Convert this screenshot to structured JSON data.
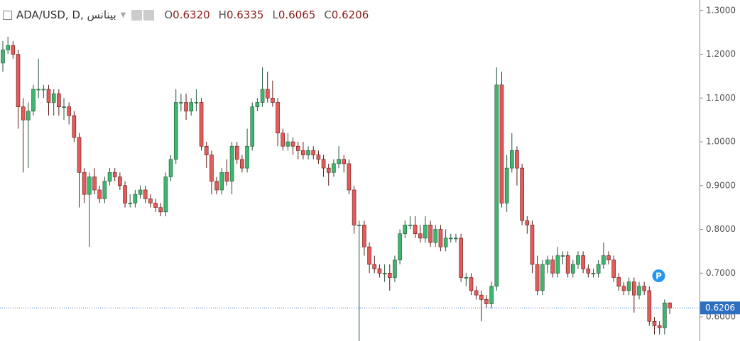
{
  "chart_data": {
    "type": "candlestick",
    "title": "ADA/USD, D, بينانس",
    "ohlc_labels": [
      {
        "key": "O",
        "text": "0.6320"
      },
      {
        "key": "H",
        "text": "0.6335"
      },
      {
        "key": "L",
        "text": "0.6065"
      },
      {
        "key": "C",
        "text": "0.6206"
      }
    ],
    "marker": "P",
    "up_color": "#3fb56f",
    "down_color": "#e35b5b",
    "up_border": "#225437",
    "down_border": "#5b1a13",
    "last_price_color": "#2f6fc0",
    "ylim": [
      0.545,
      1.324
    ],
    "yticks": [
      {
        "value": 0.6,
        "label": "0.6000"
      },
      {
        "value": 0.7,
        "label": "0.7000"
      },
      {
        "value": 0.8,
        "label": "0.8000"
      },
      {
        "value": 0.9,
        "label": "0.9000"
      },
      {
        "value": 1.0,
        "label": "1.0000"
      },
      {
        "value": 1.1,
        "label": "1.1000"
      },
      {
        "value": 1.2,
        "label": "1.2000"
      },
      {
        "value": 1.3,
        "label": "1.3000"
      }
    ],
    "open": [
      1.18,
      1.21,
      1.22,
      1.2,
      1.08,
      1.05,
      1.07,
      1.12,
      1.12,
      1.12,
      1.09,
      1.11,
      1.08,
      1.08,
      1.06,
      1.01,
      0.93,
      0.88,
      0.92,
      0.89,
      0.87,
      0.91,
      0.93,
      0.92,
      0.9,
      0.86,
      0.86,
      0.88,
      0.89,
      0.87,
      0.86,
      0.85,
      0.84,
      0.92,
      0.96,
      1.09,
      1.09,
      1.07,
      1.09,
      1.09,
      0.99,
      0.97,
      0.91,
      0.89,
      0.93,
      0.91,
      0.99,
      0.96,
      0.94,
      0.99,
      1.08,
      1.09,
      1.12,
      1.1,
      1.09,
      1.02,
      0.99,
      1.0,
      0.99,
      0.98,
      0.97,
      0.98,
      0.97,
      0.96,
      0.94,
      0.93,
      0.95,
      0.96,
      0.95,
      0.89,
      0.81,
      0.81,
      0.76,
      0.72,
      0.71,
      0.7,
      0.7,
      0.69,
      0.73,
      0.79,
      0.81,
      0.81,
      0.79,
      0.78,
      0.81,
      0.77,
      0.8,
      0.76,
      0.78,
      0.78,
      0.78,
      0.69,
      0.69,
      0.66,
      0.65,
      0.64,
      0.63,
      0.67,
      1.13,
      0.86,
      0.94,
      0.98,
      0.94,
      0.82,
      0.81,
      0.72,
      0.66,
      0.72,
      0.73,
      0.7,
      0.74,
      0.74,
      0.7,
      0.72,
      0.74,
      0.71,
      0.7,
      0.7,
      0.72,
      0.74,
      0.73,
      0.69,
      0.67,
      0.66,
      0.68,
      0.65,
      0.67,
      0.66,
      0.59,
      0.58,
      0.575,
      0.632
    ],
    "high": [
      1.23,
      1.24,
      1.23,
      1.21,
      1.1,
      1.09,
      1.13,
      1.19,
      1.13,
      1.13,
      1.12,
      1.12,
      1.1,
      1.09,
      1.07,
      1.02,
      0.94,
      0.93,
      0.94,
      0.9,
      0.92,
      0.94,
      0.94,
      0.93,
      0.91,
      0.88,
      0.89,
      0.9,
      0.9,
      0.88,
      0.87,
      0.86,
      0.93,
      0.97,
      1.12,
      1.11,
      1.11,
      1.1,
      1.12,
      1.1,
      1.0,
      0.98,
      0.92,
      0.94,
      0.96,
      1.0,
      1.0,
      0.97,
      1.03,
      1.09,
      1.1,
      1.17,
      1.16,
      1.14,
      1.1,
      1.03,
      1.02,
      1.01,
      1.0,
      1.0,
      0.99,
      0.99,
      0.98,
      0.97,
      0.95,
      0.96,
      0.99,
      0.97,
      0.96,
      0.9,
      0.82,
      0.82,
      0.77,
      0.74,
      0.72,
      0.72,
      0.72,
      0.74,
      0.8,
      0.82,
      0.83,
      0.83,
      0.81,
      0.83,
      0.82,
      0.81,
      0.81,
      0.8,
      0.79,
      0.79,
      0.79,
      0.7,
      0.7,
      0.67,
      0.66,
      0.65,
      0.68,
      1.17,
      1.16,
      0.97,
      1.02,
      0.99,
      0.95,
      0.83,
      0.82,
      0.74,
      0.73,
      0.74,
      0.74,
      0.76,
      0.75,
      0.75,
      0.73,
      0.75,
      0.75,
      0.72,
      0.71,
      0.73,
      0.77,
      0.75,
      0.74,
      0.7,
      0.68,
      0.69,
      0.69,
      0.68,
      0.68,
      0.67,
      0.6,
      0.59,
      0.64,
      0.6335
    ],
    "low": [
      1.16,
      1.2,
      1.19,
      1.03,
      0.93,
      0.94,
      1.06,
      1.1,
      1.1,
      1.06,
      1.06,
      1.06,
      1.05,
      1.04,
      1.0,
      0.85,
      0.86,
      0.76,
      0.88,
      0.86,
      0.86,
      0.9,
      0.91,
      0.89,
      0.85,
      0.85,
      0.85,
      0.87,
      0.86,
      0.85,
      0.84,
      0.83,
      0.83,
      0.91,
      0.95,
      1.07,
      1.05,
      1.06,
      1.07,
      0.98,
      0.94,
      0.88,
      0.88,
      0.88,
      0.9,
      0.88,
      0.95,
      0.93,
      0.93,
      0.98,
      1.07,
      1.08,
      1.09,
      1.08,
      0.99,
      0.98,
      0.98,
      0.97,
      0.96,
      0.96,
      0.96,
      0.96,
      0.95,
      0.92,
      0.9,
      0.92,
      0.94,
      0.93,
      0.88,
      0.79,
      0.545,
      0.74,
      0.7,
      0.7,
      0.69,
      0.68,
      0.66,
      0.68,
      0.72,
      0.78,
      0.8,
      0.78,
      0.77,
      0.77,
      0.76,
      0.76,
      0.75,
      0.75,
      0.77,
      0.77,
      0.68,
      0.67,
      0.65,
      0.64,
      0.59,
      0.62,
      0.62,
      0.66,
      0.85,
      0.84,
      0.93,
      0.9,
      0.81,
      0.79,
      0.7,
      0.65,
      0.65,
      0.7,
      0.69,
      0.69,
      0.72,
      0.69,
      0.69,
      0.71,
      0.7,
      0.69,
      0.69,
      0.69,
      0.71,
      0.72,
      0.68,
      0.66,
      0.65,
      0.65,
      0.61,
      0.64,
      0.65,
      0.58,
      0.56,
      0.56,
      0.56,
      0.6065
    ],
    "close": [
      1.21,
      1.22,
      1.2,
      1.08,
      1.05,
      1.07,
      1.12,
      1.12,
      1.12,
      1.09,
      1.11,
      1.08,
      1.08,
      1.06,
      1.01,
      0.93,
      0.88,
      0.92,
      0.89,
      0.87,
      0.91,
      0.93,
      0.92,
      0.9,
      0.86,
      0.86,
      0.88,
      0.89,
      0.87,
      0.86,
      0.85,
      0.84,
      0.92,
      0.96,
      1.09,
      1.09,
      1.07,
      1.09,
      1.09,
      0.99,
      0.97,
      0.91,
      0.89,
      0.93,
      0.91,
      0.99,
      0.96,
      0.94,
      0.99,
      1.08,
      1.09,
      1.12,
      1.1,
      1.09,
      1.02,
      0.99,
      1.0,
      0.99,
      0.98,
      0.97,
      0.98,
      0.97,
      0.96,
      0.94,
      0.93,
      0.95,
      0.96,
      0.95,
      0.89,
      0.81,
      0.81,
      0.76,
      0.72,
      0.71,
      0.7,
      0.7,
      0.69,
      0.73,
      0.79,
      0.81,
      0.81,
      0.79,
      0.78,
      0.81,
      0.77,
      0.8,
      0.76,
      0.78,
      0.78,
      0.78,
      0.69,
      0.69,
      0.66,
      0.65,
      0.64,
      0.63,
      0.67,
      1.13,
      0.86,
      0.94,
      0.98,
      0.94,
      0.82,
      0.81,
      0.72,
      0.66,
      0.72,
      0.73,
      0.7,
      0.74,
      0.74,
      0.7,
      0.72,
      0.74,
      0.71,
      0.7,
      0.7,
      0.72,
      0.74,
      0.73,
      0.69,
      0.67,
      0.66,
      0.68,
      0.65,
      0.67,
      0.66,
      0.59,
      0.58,
      0.575,
      0.632,
      0.6206
    ]
  }
}
